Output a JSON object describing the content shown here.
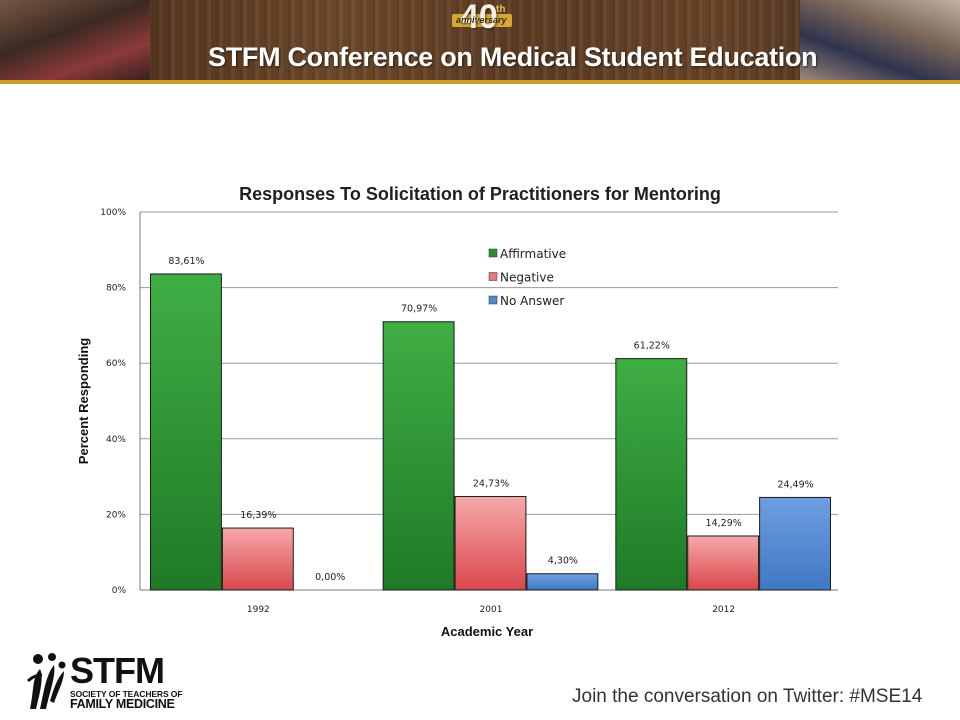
{
  "banner": {
    "title": "STFM Conference on Medical Student Education",
    "anniversary_number": "40",
    "anniversary_suffix": "th",
    "anniversary_word": "anniversary"
  },
  "footer": {
    "logo_main": "STFM",
    "logo_line1": "SOCIETY OF TEACHERS OF",
    "logo_line2": "FAMILY MEDICINE",
    "twitter_text": "Join the conversation on Twitter: #MSE14"
  },
  "colors": {
    "affirmative": "#2e8b34",
    "negative": "#e9787a",
    "no_answer": "#4f86cc",
    "banner_gold": "#c9a227"
  },
  "chart_data": {
    "type": "bar",
    "title": "Responses To Solicitation of Practitioners for Mentoring",
    "xlabel": "Academic Year",
    "ylabel": "Percent Responding",
    "categories": [
      "1992",
      "2001",
      "2012"
    ],
    "ylim": [
      0,
      100
    ],
    "yticks": [
      0,
      20,
      40,
      60,
      80,
      100
    ],
    "ytick_labels": [
      "0%",
      "20%",
      "40%",
      "60%",
      "80%",
      "100%"
    ],
    "grid": true,
    "legend_position": "top-center",
    "series": [
      {
        "name": "Affirmative",
        "values": [
          83.61,
          70.97,
          61.22
        ],
        "labels": [
          "83,61%",
          "70,97%",
          "61,22%"
        ]
      },
      {
        "name": "Negative",
        "values": [
          16.39,
          24.73,
          14.29
        ],
        "labels": [
          "16,39%",
          "24,73%",
          "14,29%"
        ]
      },
      {
        "name": "No Answer",
        "values": [
          0.0,
          4.3,
          24.49
        ],
        "labels": [
          "0,00%",
          "4,30%",
          "24,49%"
        ]
      }
    ]
  }
}
